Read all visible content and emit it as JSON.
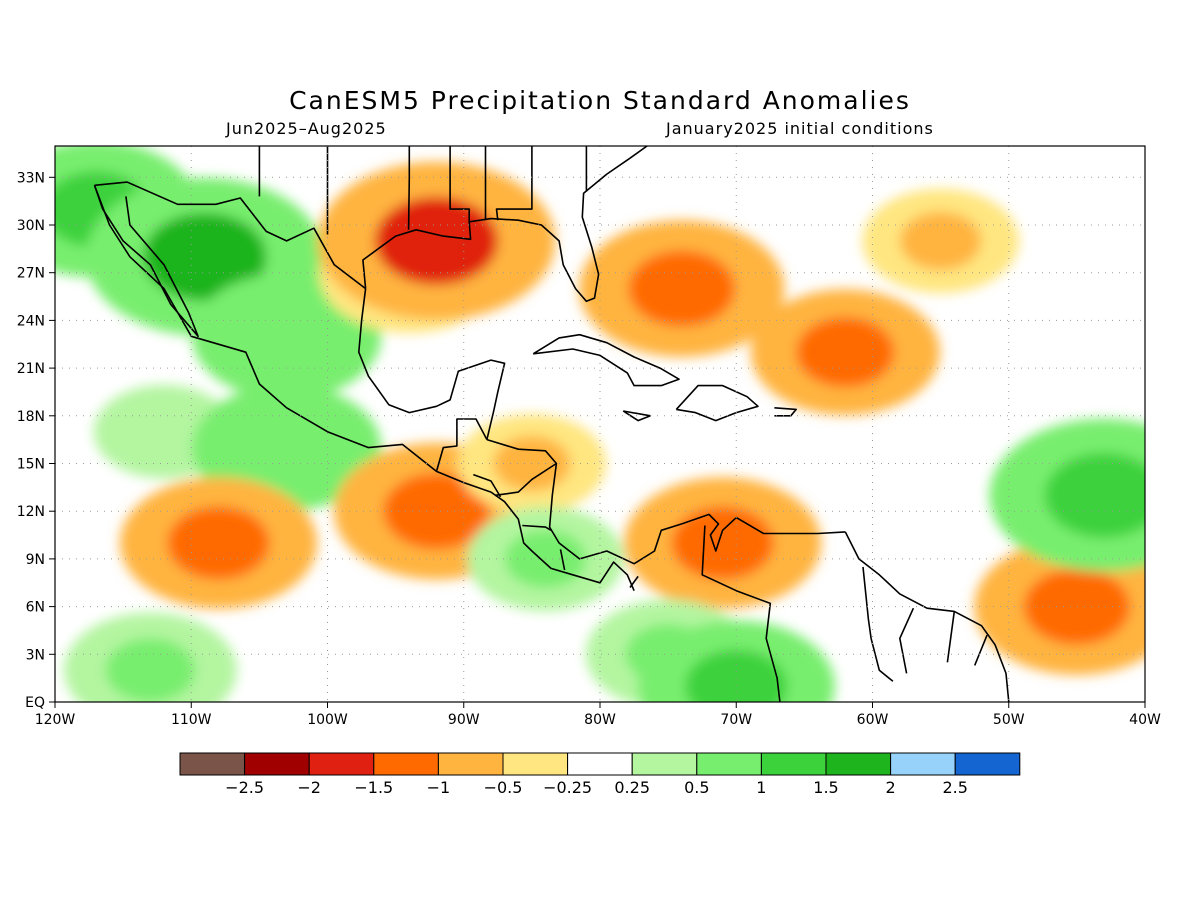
{
  "title": "CanESM5 Precipitation Standard Anomalies",
  "subtitle_left": "Jun2025–Aug2025",
  "subtitle_right": "January2025 initial conditions",
  "map": {
    "lon_range": [
      -120,
      -40
    ],
    "lat_range": [
      0,
      35
    ],
    "lon_ticks": [
      "120W",
      "110W",
      "100W",
      "90W",
      "80W",
      "70W",
      "60W",
      "50W",
      "40W"
    ],
    "lat_ticks": [
      "EQ",
      "3N",
      "6N",
      "9N",
      "12N",
      "15N",
      "18N",
      "21N",
      "24N",
      "27N",
      "30N",
      "33N"
    ],
    "grid": "dotted"
  },
  "colorbar": {
    "colors": [
      "#7a5448",
      "#a00000",
      "#e02010",
      "#ff6a00",
      "#ffb440",
      "#ffe680",
      "#ffffff",
      "#b4f5a0",
      "#78ee6e",
      "#3cd23c",
      "#1eb41e",
      "#96d2fa",
      "#1464d2"
    ],
    "labels": [
      "−2.5",
      "−2",
      "−1.5",
      "−1",
      "−0.5",
      "−0.25",
      "0.25",
      "0.5",
      "1",
      "1.5",
      "2",
      "2.5"
    ]
  },
  "chart_data": {
    "type": "heatmap",
    "title": "CanESM5 Precipitation Standard Anomalies",
    "variable": "precipitation standard anomaly",
    "period": "Jun2025–Aug2025",
    "initial_conditions": "January2025",
    "levels": [
      -2.5,
      -2,
      -1.5,
      -1,
      -0.5,
      -0.25,
      0.25,
      0.5,
      1,
      1.5,
      2,
      2.5
    ],
    "regions": [
      {
        "lon": -117,
        "lat": 31,
        "value": 1.2
      },
      {
        "lon": -109,
        "lat": 28,
        "value": 1.6
      },
      {
        "lon": -103,
        "lat": 23,
        "value": 1.0
      },
      {
        "lon": -112,
        "lat": 17,
        "value": 0.4
      },
      {
        "lon": -103,
        "lat": 16,
        "value": 1.0
      },
      {
        "lon": -94,
        "lat": 27,
        "value": -0.9
      },
      {
        "lon": -92,
        "lat": 29,
        "value": -1.6
      },
      {
        "lon": -74,
        "lat": 26,
        "value": -1.2
      },
      {
        "lon": -62,
        "lat": 22,
        "value": -1.0
      },
      {
        "lon": -55,
        "lat": 29,
        "value": -0.6
      },
      {
        "lon": -108,
        "lat": 10,
        "value": -1.1
      },
      {
        "lon": -92,
        "lat": 12,
        "value": -1.2
      },
      {
        "lon": -85,
        "lat": 15,
        "value": -0.5
      },
      {
        "lon": -71,
        "lat": 10,
        "value": -1.1
      },
      {
        "lon": -45,
        "lat": 6,
        "value": -1.2
      },
      {
        "lon": -43,
        "lat": 13,
        "value": 1.5
      },
      {
        "lon": -75,
        "lat": 3,
        "value": 0.7
      },
      {
        "lon": -70,
        "lat": 1,
        "value": 1.1
      },
      {
        "lon": -113,
        "lat": 2,
        "value": 0.8
      },
      {
        "lon": -84,
        "lat": 9,
        "value": 0.6
      }
    ]
  }
}
